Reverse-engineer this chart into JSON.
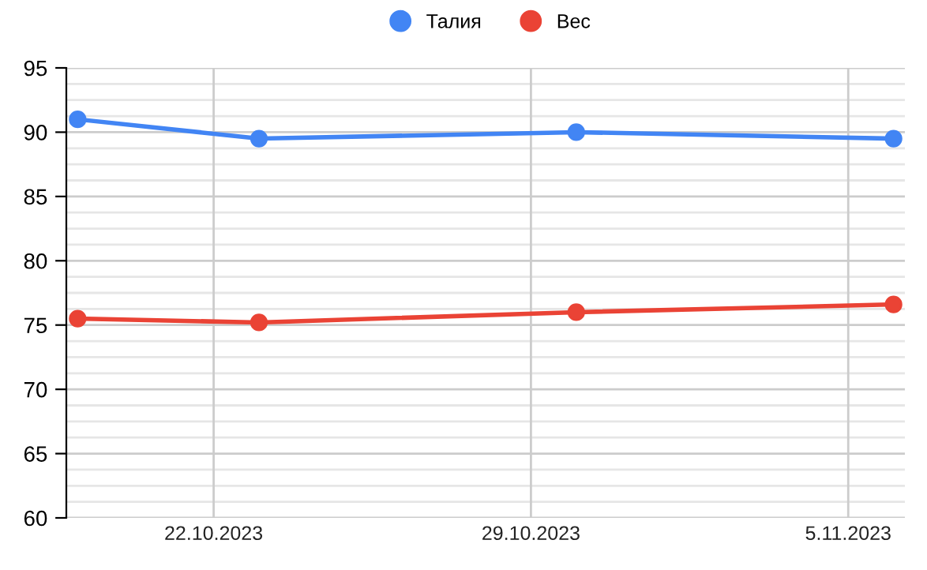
{
  "chart_data": {
    "type": "line",
    "x": [
      "2023-10-19",
      "2023-10-23",
      "2023-10-30",
      "2023-11-06"
    ],
    "series": [
      {
        "name": "Талия",
        "color": "#4285f4",
        "values": [
          91,
          89.5,
          90,
          89.5
        ]
      },
      {
        "name": "Вес",
        "color": "#ea4335",
        "values": [
          75.5,
          75.2,
          76,
          76.6
        ]
      }
    ],
    "xlim": [
      "2023-10-18T18:00",
      "2023-11-06T06:00"
    ],
    "xticks": [
      {
        "value": "2023-10-22",
        "label": "22.10.2023"
      },
      {
        "value": "2023-10-29",
        "label": "29.10.2023"
      },
      {
        "value": "2023-11-05",
        "label": "5.11.2023"
      }
    ],
    "ylim": [
      60,
      95
    ],
    "yticks": [
      60,
      65,
      70,
      75,
      80,
      85,
      90,
      95
    ],
    "grid": true,
    "legend": "top",
    "marker": "circle",
    "line_style": "solid"
  }
}
